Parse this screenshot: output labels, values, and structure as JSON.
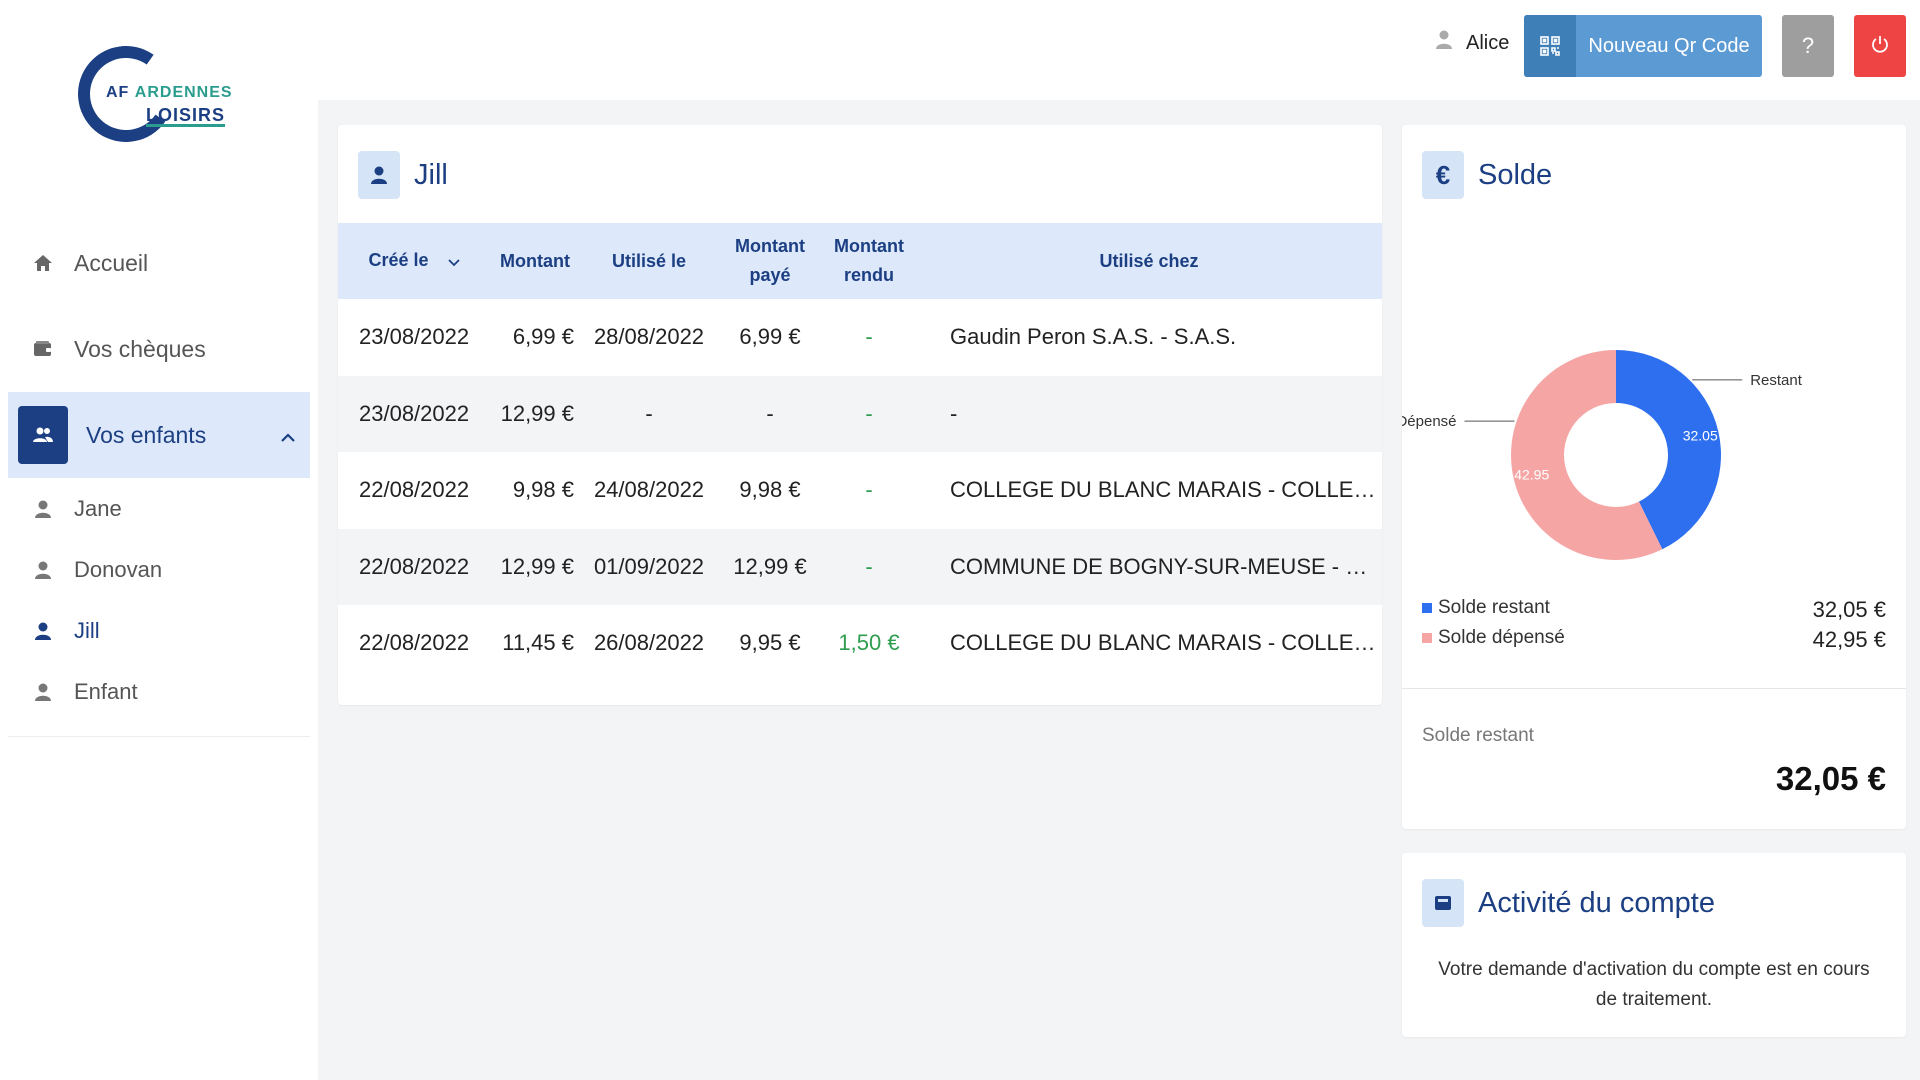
{
  "app": {
    "logo": {
      "line1a": "AF",
      "line1b": "ARDENNES",
      "line2": "LOISIRS"
    }
  },
  "sidebar": {
    "items": [
      {
        "label": "Accueil",
        "icon": "home-icon"
      },
      {
        "label": "Vos chèques",
        "icon": "wallet-icon"
      },
      {
        "label": "Vos enfants",
        "icon": "users-icon",
        "active": true
      }
    ],
    "children": [
      {
        "label": "Jane"
      },
      {
        "label": "Donovan"
      },
      {
        "label": "Jill",
        "current": true
      },
      {
        "label": "Enfant"
      }
    ]
  },
  "header": {
    "user_name": "Alice",
    "qr_button": "Nouveau Qr Code",
    "help_button": "?"
  },
  "jill_card": {
    "title": "Jill",
    "columns": [
      "Créé le",
      "Montant",
      "Utilisé le",
      "Montant payé",
      "Montant rendu",
      "Utilisé chez"
    ],
    "rows": [
      {
        "cree": "23/08/2022",
        "montant": "6,99 €",
        "utilise": "28/08/2022",
        "paye": "6,99 €",
        "rendu": "-",
        "chez": "Gaudin Peron S.A.S. - S.A.S."
      },
      {
        "cree": "23/08/2022",
        "montant": "12,99 €",
        "utilise": "-",
        "paye": "-",
        "rendu": "-",
        "chez": "-"
      },
      {
        "cree": "22/08/2022",
        "montant": "9,98 €",
        "utilise": "24/08/2022",
        "paye": "9,98 €",
        "rendu": "-",
        "chez": "COLLEGE DU BLANC MARAIS - COLLEGE DE..."
      },
      {
        "cree": "22/08/2022",
        "montant": "12,99 €",
        "utilise": "01/09/2022",
        "paye": "12,99 €",
        "rendu": "-",
        "chez": "COMMUNE DE BOGNY-SUR-MEUSE - MAIRI..."
      },
      {
        "cree": "22/08/2022",
        "montant": "11,45 €",
        "utilise": "26/08/2022",
        "paye": "9,95 €",
        "rendu": "1,50 €",
        "chez": "COLLEGE DU BLANC MARAIS - COLLEGE DE..."
      }
    ]
  },
  "solde_card": {
    "title": "Solde",
    "icon": "€",
    "chart_data": {
      "type": "pie",
      "title": "",
      "slices": [
        {
          "name": "Restant",
          "value": 32.05,
          "label": "32.05",
          "color": "#2e6fef"
        },
        {
          "name": "Dépensé",
          "value": 42.95,
          "label": "42.95",
          "color": "#f6a5a5"
        }
      ]
    },
    "legend": [
      {
        "label": "Solde restant",
        "value": "32,05 €",
        "color": "#2e6fef"
      },
      {
        "label": "Solde dépensé",
        "value": "42,95 €",
        "color": "#f6a5a5"
      }
    ],
    "total_label": "Solde restant",
    "total_value": "32,05 €"
  },
  "activity_card": {
    "title": "Activité du compte",
    "text": "Votre demande d'activation du compte est en cours de traitement."
  },
  "colors": {
    "primary": "#1b3f82",
    "accent": "#5c9ad4",
    "danger": "#ef4444",
    "success": "#2e9d4f"
  }
}
